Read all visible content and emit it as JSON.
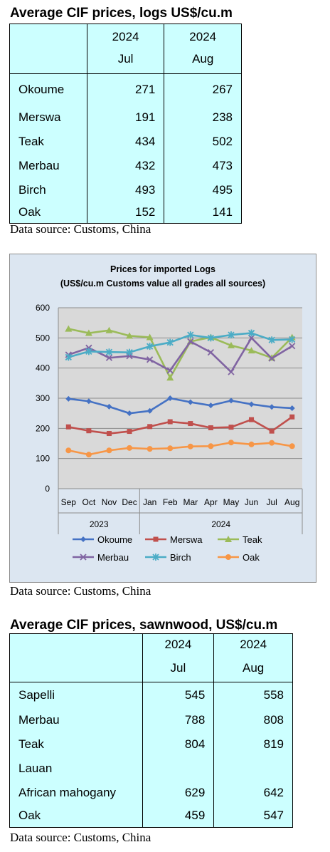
{
  "table1": {
    "title": "Average CIF prices, logs US$/cu.m",
    "headers": [
      {
        "year": "2024",
        "month": "Jul"
      },
      {
        "year": "2024",
        "month": "Aug"
      }
    ],
    "rows": [
      {
        "name": "Okoume",
        "jul": "271",
        "aug": "267"
      },
      {
        "name": "Merswa",
        "jul": "191",
        "aug": "238"
      },
      {
        "name": "Teak",
        "jul": "434",
        "aug": "502"
      },
      {
        "name": "Merbau",
        "jul": "432",
        "aug": "473"
      },
      {
        "name": "Birch",
        "jul": "493",
        "aug": "495"
      },
      {
        "name": "Oak",
        "jul": "152",
        "aug": "141"
      }
    ],
    "source": "Data source: Customs, China"
  },
  "chart_data": {
    "type": "line",
    "title": "Prices for imported Logs",
    "subtitle": "(US$/cu.m Customs value all grades all sources)",
    "categories": [
      "Sep",
      "Oct",
      "Nov",
      "Dec",
      "Jan",
      "Feb",
      "Mar",
      "Apr",
      "May",
      "Jun",
      "Jul",
      "Aug"
    ],
    "year_groups": [
      {
        "label": "2023",
        "span": 4
      },
      {
        "label": "2024",
        "span": 8
      }
    ],
    "ylim": [
      0,
      600
    ],
    "yticks": [
      "0",
      "100",
      "200",
      "300",
      "400",
      "500",
      "600"
    ],
    "grid": true,
    "legend_position": "bottom",
    "series": [
      {
        "name": "Okoume",
        "color": "#4572c4",
        "marker": "diamond",
        "values": [
          298,
          290,
          272,
          250,
          258,
          300,
          287,
          276,
          292,
          280,
          271,
          267
        ]
      },
      {
        "name": "Merswa",
        "color": "#c0504d",
        "marker": "square",
        "values": [
          205,
          192,
          183,
          190,
          206,
          222,
          216,
          202,
          204,
          229,
          191,
          238
        ]
      },
      {
        "name": "Teak",
        "color": "#9bbb59",
        "marker": "triangle",
        "values": [
          530,
          516,
          525,
          507,
          502,
          368,
          488,
          502,
          475,
          458,
          434,
          502
        ]
      },
      {
        "name": "Merbau",
        "color": "#8064a2",
        "marker": "x",
        "values": [
          444,
          467,
          434,
          440,
          428,
          392,
          488,
          452,
          387,
          500,
          432,
          473
        ]
      },
      {
        "name": "Birch",
        "color": "#4bacc6",
        "marker": "star",
        "values": [
          436,
          455,
          453,
          452,
          472,
          485,
          510,
          500,
          510,
          516,
          493,
          495
        ]
      },
      {
        "name": "Oak",
        "color": "#f79646",
        "marker": "circle",
        "values": [
          127,
          113,
          127,
          135,
          132,
          134,
          140,
          141,
          153,
          147,
          152,
          141
        ]
      }
    ],
    "source": "Data source: Customs, China"
  },
  "table2": {
    "title": "Average CIF prices, sawnwood, US$/cu.m",
    "headers": [
      {
        "year": "2024",
        "month": "Jul"
      },
      {
        "year": "2024",
        "month": "Aug"
      }
    ],
    "rows": [
      {
        "name": "Sapelli",
        "jul": "545",
        "aug": "558"
      },
      {
        "name": "Merbau",
        "jul": "788",
        "aug": "808"
      },
      {
        "name": "Teak",
        "jul": "804",
        "aug": "819"
      },
      {
        "name": "Lauan",
        "jul": "",
        "aug": ""
      },
      {
        "name": "African mahogany",
        "jul": "629",
        "aug": "642"
      },
      {
        "name": "Oak",
        "jul": "459",
        "aug": "547"
      }
    ],
    "source": "Data source: Customs, China"
  }
}
